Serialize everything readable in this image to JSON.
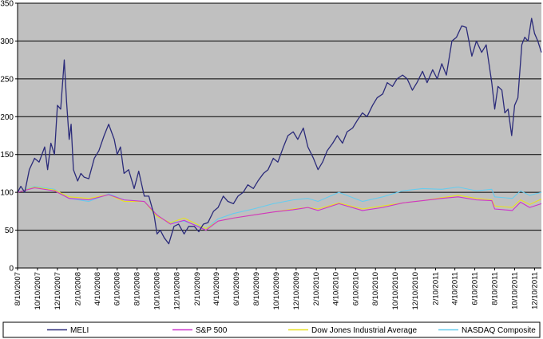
{
  "chart_data": {
    "type": "line",
    "title": "",
    "xlabel": "",
    "ylabel": "",
    "ylim": [
      0,
      350
    ],
    "yticks": [
      0,
      50,
      100,
      150,
      200,
      250,
      300,
      350
    ],
    "xlim": [
      "2007-08-10",
      "2011-12-31"
    ],
    "xtick_labels": [
      "8/10/2007",
      "10/10/2007",
      "12/10/2007",
      "2/10/2008",
      "4/10/2008",
      "6/10/2008",
      "8/10/2008",
      "10/10/2008",
      "12/10/2008",
      "2/10/2009",
      "4/10/2009",
      "6/10/2009",
      "8/10/2009",
      "10/10/2009",
      "12/10/2009",
      "2/10/2010",
      "4/10/2010",
      "6/10/2010",
      "8/10/2010",
      "10/10/2010",
      "12/10/2010",
      "2/10/2011",
      "4/10/2011",
      "6/10/2011",
      "8/10/2011",
      "10/10/2011",
      "12/10/2011"
    ],
    "grid": true,
    "legend_position": "bottom",
    "plot_background": "#c0c0c0",
    "series": [
      {
        "name": "MELI",
        "color": "#2b2b7a",
        "points": [
          [
            "2007-08-10",
            100
          ],
          [
            "2007-08-20",
            108
          ],
          [
            "2007-09-01",
            100
          ],
          [
            "2007-09-15",
            130
          ],
          [
            "2007-10-01",
            145
          ],
          [
            "2007-10-15",
            140
          ],
          [
            "2007-11-01",
            160
          ],
          [
            "2007-11-10",
            130
          ],
          [
            "2007-11-20",
            165
          ],
          [
            "2007-12-01",
            150
          ],
          [
            "2007-12-10",
            215
          ],
          [
            "2007-12-20",
            210
          ],
          [
            "2007-12-31",
            275
          ],
          [
            "2008-01-07",
            220
          ],
          [
            "2008-01-15",
            170
          ],
          [
            "2008-01-21",
            190
          ],
          [
            "2008-01-28",
            130
          ],
          [
            "2008-02-10",
            115
          ],
          [
            "2008-02-20",
            125
          ],
          [
            "2008-03-01",
            120
          ],
          [
            "2008-03-15",
            118
          ],
          [
            "2008-04-01",
            145
          ],
          [
            "2008-04-15",
            155
          ],
          [
            "2008-05-01",
            175
          ],
          [
            "2008-05-15",
            190
          ],
          [
            "2008-06-01",
            170
          ],
          [
            "2008-06-10",
            150
          ],
          [
            "2008-06-20",
            160
          ],
          [
            "2008-07-01",
            125
          ],
          [
            "2008-07-15",
            130
          ],
          [
            "2008-08-01",
            105
          ],
          [
            "2008-08-15",
            128
          ],
          [
            "2008-09-01",
            95
          ],
          [
            "2008-09-15",
            95
          ],
          [
            "2008-10-01",
            70
          ],
          [
            "2008-10-10",
            45
          ],
          [
            "2008-10-20",
            50
          ],
          [
            "2008-11-01",
            40
          ],
          [
            "2008-11-15",
            32
          ],
          [
            "2008-12-01",
            55
          ],
          [
            "2008-12-15",
            58
          ],
          [
            "2009-01-01",
            45
          ],
          [
            "2009-01-15",
            55
          ],
          [
            "2009-02-01",
            55
          ],
          [
            "2009-02-15",
            48
          ],
          [
            "2009-03-01",
            58
          ],
          [
            "2009-03-15",
            60
          ],
          [
            "2009-04-01",
            75
          ],
          [
            "2009-04-15",
            80
          ],
          [
            "2009-05-01",
            95
          ],
          [
            "2009-05-15",
            88
          ],
          [
            "2009-06-01",
            85
          ],
          [
            "2009-06-15",
            95
          ],
          [
            "2009-07-01",
            100
          ],
          [
            "2009-07-15",
            110
          ],
          [
            "2009-08-01",
            105
          ],
          [
            "2009-08-15",
            115
          ],
          [
            "2009-09-01",
            125
          ],
          [
            "2009-09-15",
            130
          ],
          [
            "2009-10-01",
            145
          ],
          [
            "2009-10-15",
            140
          ],
          [
            "2009-11-01",
            160
          ],
          [
            "2009-11-15",
            175
          ],
          [
            "2009-12-01",
            180
          ],
          [
            "2009-12-15",
            170
          ],
          [
            "2010-01-01",
            185
          ],
          [
            "2010-01-15",
            160
          ],
          [
            "2010-02-01",
            145
          ],
          [
            "2010-02-15",
            130
          ],
          [
            "2010-03-01",
            140
          ],
          [
            "2010-03-15",
            155
          ],
          [
            "2010-04-01",
            165
          ],
          [
            "2010-04-15",
            175
          ],
          [
            "2010-05-01",
            165
          ],
          [
            "2010-05-15",
            180
          ],
          [
            "2010-06-01",
            185
          ],
          [
            "2010-06-15",
            195
          ],
          [
            "2010-07-01",
            205
          ],
          [
            "2010-07-15",
            200
          ],
          [
            "2010-08-01",
            215
          ],
          [
            "2010-08-15",
            225
          ],
          [
            "2010-09-01",
            230
          ],
          [
            "2010-09-15",
            245
          ],
          [
            "2010-10-01",
            240
          ],
          [
            "2010-10-15",
            250
          ],
          [
            "2010-11-01",
            255
          ],
          [
            "2010-11-15",
            250
          ],
          [
            "2010-12-01",
            235
          ],
          [
            "2010-12-15",
            245
          ],
          [
            "2011-01-01",
            260
          ],
          [
            "2011-01-15",
            245
          ],
          [
            "2011-02-01",
            262
          ],
          [
            "2011-02-15",
            250
          ],
          [
            "2011-03-01",
            270
          ],
          [
            "2011-03-15",
            255
          ],
          [
            "2011-04-01",
            300
          ],
          [
            "2011-04-15",
            305
          ],
          [
            "2011-05-01",
            320
          ],
          [
            "2011-05-15",
            318
          ],
          [
            "2011-06-01",
            280
          ],
          [
            "2011-06-15",
            300
          ],
          [
            "2011-07-01",
            285
          ],
          [
            "2011-07-15",
            295
          ],
          [
            "2011-08-01",
            245
          ],
          [
            "2011-08-10",
            210
          ],
          [
            "2011-08-20",
            240
          ],
          [
            "2011-09-01",
            235
          ],
          [
            "2011-09-10",
            205
          ],
          [
            "2011-09-20",
            210
          ],
          [
            "2011-10-01",
            175
          ],
          [
            "2011-10-10",
            215
          ],
          [
            "2011-10-20",
            225
          ],
          [
            "2011-11-01",
            295
          ],
          [
            "2011-11-10",
            305
          ],
          [
            "2011-11-20",
            300
          ],
          [
            "2011-12-01",
            330
          ],
          [
            "2011-12-10",
            310
          ],
          [
            "2011-12-20",
            300
          ],
          [
            "2011-12-31",
            285
          ]
        ]
      },
      {
        "name": "S&P 500",
        "color": "#cc33cc",
        "points": [
          [
            "2007-08-10",
            100
          ],
          [
            "2007-10-01",
            106
          ],
          [
            "2007-12-01",
            102
          ],
          [
            "2008-01-15",
            92
          ],
          [
            "2008-03-15",
            90
          ],
          [
            "2008-05-15",
            97
          ],
          [
            "2008-07-01",
            90
          ],
          [
            "2008-09-01",
            88
          ],
          [
            "2008-10-10",
            70
          ],
          [
            "2008-11-20",
            58
          ],
          [
            "2009-01-01",
            63
          ],
          [
            "2009-03-09",
            50
          ],
          [
            "2009-04-15",
            62
          ],
          [
            "2009-06-01",
            66
          ],
          [
            "2009-08-01",
            70
          ],
          [
            "2009-10-01",
            74
          ],
          [
            "2009-12-01",
            77
          ],
          [
            "2010-01-15",
            80
          ],
          [
            "2010-02-15",
            76
          ],
          [
            "2010-04-20",
            85
          ],
          [
            "2010-07-01",
            76
          ],
          [
            "2010-09-01",
            80
          ],
          [
            "2010-11-01",
            86
          ],
          [
            "2011-01-01",
            89
          ],
          [
            "2011-03-01",
            92
          ],
          [
            "2011-04-20",
            94
          ],
          [
            "2011-06-15",
            90
          ],
          [
            "2011-08-01",
            89
          ],
          [
            "2011-08-10",
            78
          ],
          [
            "2011-10-03",
            76
          ],
          [
            "2011-10-28",
            87
          ],
          [
            "2011-11-25",
            80
          ],
          [
            "2011-12-31",
            85
          ]
        ]
      },
      {
        "name": "Dow Jones Industrial Average",
        "color": "#e8e020",
        "points": [
          [
            "2007-08-10",
            100
          ],
          [
            "2007-10-01",
            107
          ],
          [
            "2007-12-01",
            103
          ],
          [
            "2008-01-15",
            94
          ],
          [
            "2008-03-15",
            92
          ],
          [
            "2008-05-15",
            97
          ],
          [
            "2008-07-01",
            88
          ],
          [
            "2008-09-01",
            88
          ],
          [
            "2008-10-10",
            68
          ],
          [
            "2008-11-20",
            60
          ],
          [
            "2009-01-01",
            66
          ],
          [
            "2009-03-09",
            52
          ],
          [
            "2009-04-15",
            62
          ],
          [
            "2009-06-01",
            66
          ],
          [
            "2009-08-01",
            70
          ],
          [
            "2009-10-01",
            74
          ],
          [
            "2009-12-01",
            78
          ],
          [
            "2010-01-15",
            80
          ],
          [
            "2010-02-15",
            78
          ],
          [
            "2010-04-20",
            86
          ],
          [
            "2010-07-01",
            78
          ],
          [
            "2010-09-01",
            82
          ],
          [
            "2010-11-01",
            86
          ],
          [
            "2011-01-01",
            89
          ],
          [
            "2011-03-01",
            93
          ],
          [
            "2011-04-20",
            96
          ],
          [
            "2011-06-15",
            92
          ],
          [
            "2011-08-01",
            90
          ],
          [
            "2011-08-10",
            82
          ],
          [
            "2011-10-03",
            80
          ],
          [
            "2011-10-28",
            90
          ],
          [
            "2011-11-25",
            84
          ],
          [
            "2011-12-31",
            91
          ]
        ]
      },
      {
        "name": "NASDAQ Composite",
        "color": "#66ccee",
        "points": [
          [
            "2007-08-10",
            100
          ],
          [
            "2007-10-01",
            108
          ],
          [
            "2007-12-01",
            104
          ],
          [
            "2008-01-15",
            92
          ],
          [
            "2008-03-15",
            88
          ],
          [
            "2008-05-15",
            98
          ],
          [
            "2008-07-01",
            90
          ],
          [
            "2008-09-01",
            88
          ],
          [
            "2008-10-10",
            68
          ],
          [
            "2008-11-20",
            60
          ],
          [
            "2009-01-01",
            62
          ],
          [
            "2009-03-09",
            52
          ],
          [
            "2009-04-15",
            65
          ],
          [
            "2009-06-01",
            72
          ],
          [
            "2009-08-01",
            78
          ],
          [
            "2009-10-01",
            85
          ],
          [
            "2009-12-01",
            90
          ],
          [
            "2010-01-15",
            92
          ],
          [
            "2010-02-15",
            88
          ],
          [
            "2010-04-20",
            100
          ],
          [
            "2010-07-01",
            88
          ],
          [
            "2010-09-01",
            94
          ],
          [
            "2010-11-01",
            102
          ],
          [
            "2011-01-01",
            105
          ],
          [
            "2011-03-01",
            104
          ],
          [
            "2011-04-20",
            107
          ],
          [
            "2011-06-15",
            102
          ],
          [
            "2011-08-01",
            104
          ],
          [
            "2011-08-10",
            94
          ],
          [
            "2011-10-03",
            92
          ],
          [
            "2011-10-28",
            102
          ],
          [
            "2011-11-25",
            96
          ],
          [
            "2011-12-31",
            100
          ]
        ]
      }
    ]
  }
}
